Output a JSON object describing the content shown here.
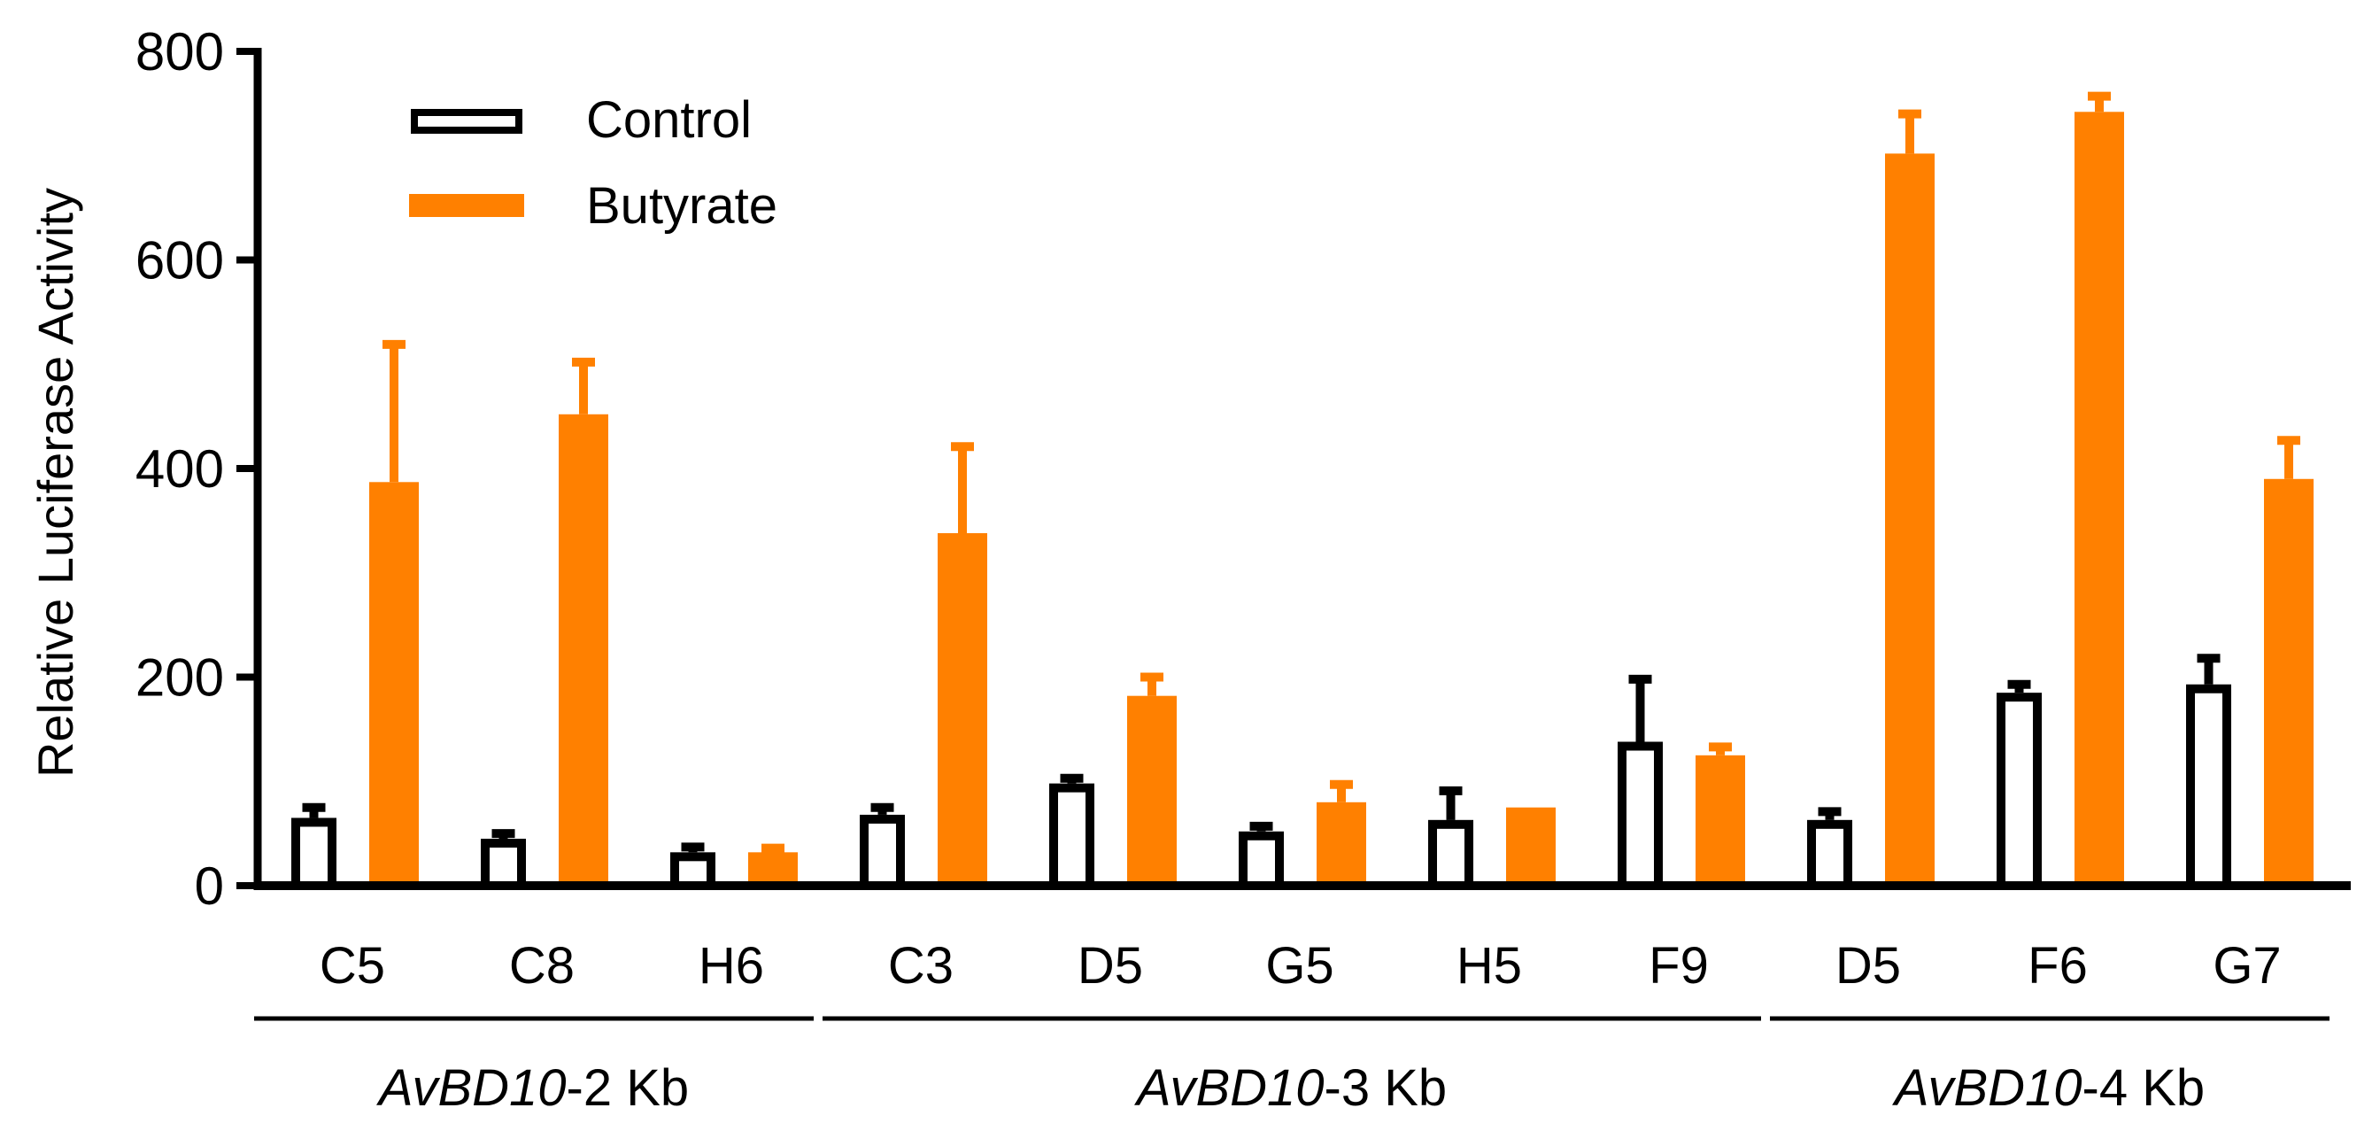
{
  "chart_data": {
    "type": "bar",
    "title": "",
    "xlabel": "",
    "ylabel": "Relative Luciferase Activity",
    "ylim": [
      0,
      800
    ],
    "yticks": [
      0,
      200,
      400,
      600,
      800
    ],
    "categories": [
      "C5",
      "C8",
      "H6",
      "C3",
      "D5",
      "G5",
      "H5",
      "F9",
      "D5",
      "F6",
      "G7"
    ],
    "series": [
      {
        "name": "Control",
        "style": "outline",
        "color": "#000000",
        "values": [
          65,
          45,
          32,
          68,
          98,
          52,
          63,
          138,
          63,
          185,
          193
        ],
        "errors": [
          10,
          5,
          5,
          7,
          5,
          5,
          28,
          60,
          8,
          8,
          25
        ]
      },
      {
        "name": "Butyrate",
        "style": "filled",
        "color": "#ff8000",
        "values": [
          387,
          452,
          32,
          338,
          182,
          80,
          75,
          125,
          702,
          742,
          390
        ],
        "errors": [
          132,
          50,
          4,
          83,
          18,
          17,
          0,
          8,
          38,
          15,
          37
        ]
      }
    ],
    "groups": [
      {
        "prefix": "AvBD10",
        "suffix": "-2 Kb",
        "start": 0,
        "end": 2
      },
      {
        "prefix": "AvBD10",
        "suffix": "-3 Kb",
        "start": 3,
        "end": 7
      },
      {
        "prefix": "AvBD10",
        "suffix": "-4 Kb",
        "start": 8,
        "end": 10
      }
    ],
    "legend_position": "top-left",
    "grid": false
  }
}
